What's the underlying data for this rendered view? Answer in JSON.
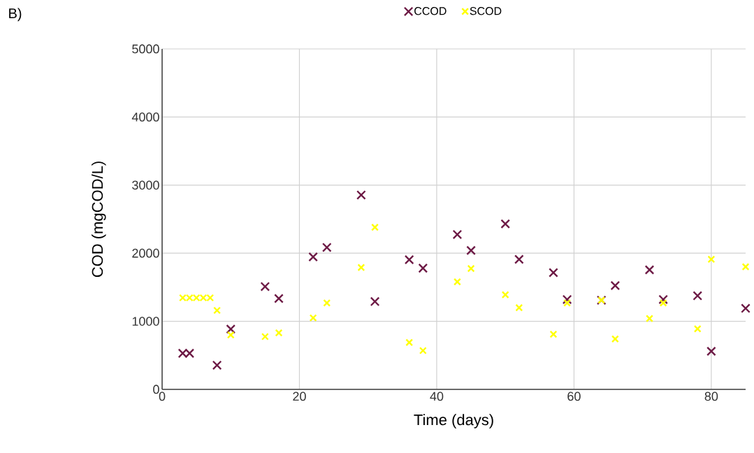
{
  "chart_data": {
    "type": "scatter",
    "xlabel": "Time (days)",
    "ylabel": "COD (mgCOD/L)",
    "annotations": [
      "B)"
    ],
    "xlim": [
      0,
      85
    ],
    "xticks": [
      0,
      20,
      40,
      60,
      80
    ],
    "ylim": [
      0,
      5000
    ],
    "yticks": [
      0,
      1000,
      2000,
      3000,
      4000,
      5000
    ],
    "grid": true,
    "legend": "top",
    "marker": "cross",
    "series": [
      {
        "name": "CCOD",
        "color": "#6d1a45",
        "x": [
          3,
          4,
          8,
          10,
          15,
          17,
          22,
          24,
          29,
          31,
          36,
          38,
          43,
          45,
          50,
          52,
          57,
          59,
          64,
          66,
          71,
          73,
          78,
          80,
          85
        ],
        "values": [
          530,
          530,
          355,
          885,
          1510,
          1335,
          1945,
          2085,
          2855,
          1290,
          1905,
          1780,
          2275,
          2040,
          2430,
          1910,
          1715,
          1320,
          1310,
          1525,
          1755,
          1320,
          1375,
          560,
          1190
        ]
      },
      {
        "name": "SCOD",
        "color": "#ffff00",
        "x": [
          3,
          4,
          5,
          6,
          7,
          8,
          10,
          15,
          17,
          22,
          24,
          29,
          31,
          36,
          38,
          43,
          45,
          50,
          52,
          57,
          59,
          64,
          66,
          71,
          73,
          78,
          80,
          85
        ],
        "values": [
          1345,
          1345,
          1345,
          1345,
          1345,
          1160,
          800,
          775,
          830,
          1050,
          1270,
          1790,
          2380,
          690,
          570,
          1580,
          1775,
          1390,
          1200,
          810,
          1270,
          1310,
          740,
          1040,
          1270,
          890,
          1910,
          1800
        ]
      }
    ]
  }
}
